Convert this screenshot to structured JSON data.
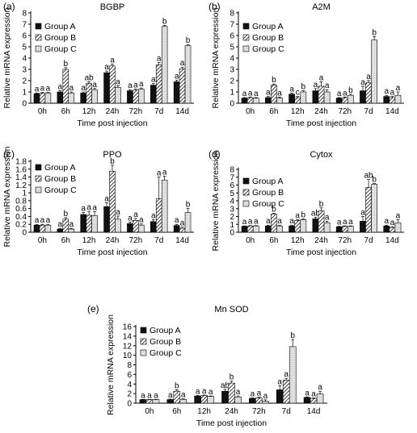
{
  "colors": {
    "group_a": "#111111",
    "group_b": "#ffffff",
    "group_c": "#e9e9e9",
    "axis": "#000000"
  },
  "legend": [
    "Group A",
    "Group B",
    "Group C"
  ],
  "chart_data": [
    {
      "panel": "(a)",
      "title": "BGBP",
      "type": "bar",
      "ylabel": "Relative mRNA expression",
      "xlabel": "Time post injection",
      "ylim": [
        0,
        8
      ],
      "yticks": [
        0,
        1,
        2,
        3,
        4,
        5,
        6,
        7,
        8
      ],
      "categories": [
        "0h",
        "6h",
        "12h",
        "24h",
        "72h",
        "7d",
        "14d"
      ],
      "series": [
        {
          "name": "Group A",
          "values": [
            0.85,
            1.0,
            0.9,
            2.7,
            1.1,
            1.6,
            1.9
          ],
          "errors": [
            0.05,
            0.1,
            0.1,
            0.15,
            0.1,
            0.15,
            0.15
          ],
          "letters": [
            "a",
            "a",
            "a",
            "a",
            "a",
            "a",
            "a"
          ]
        },
        {
          "name": "Group B",
          "values": [
            0.9,
            3.0,
            1.75,
            3.3,
            1.15,
            3.4,
            3.05
          ],
          "errors": [
            0.05,
            0.15,
            0.15,
            0.15,
            0.1,
            0.2,
            0.15
          ],
          "letters": [
            "a",
            "b",
            "ab",
            "a",
            "a",
            "a",
            "a"
          ]
        },
        {
          "name": "Group C",
          "values": [
            0.9,
            0.9,
            1.2,
            1.4,
            1.25,
            6.8,
            5.1
          ],
          "errors": [
            0.05,
            0.1,
            0.1,
            0.15,
            0.1,
            0.1,
            0.1
          ],
          "letters": [
            "a",
            "a",
            "a",
            "a",
            "a",
            "b",
            "b"
          ]
        }
      ]
    },
    {
      "panel": "(b)",
      "title": "A2M",
      "type": "bar",
      "ylabel": "Relative mRNA expression",
      "xlabel": "Time post injection",
      "ylim": [
        0,
        8
      ],
      "yticks": [
        0,
        1,
        2,
        3,
        4,
        5,
        6,
        7,
        8
      ],
      "categories": [
        "0h",
        "6h",
        "12h",
        "24h",
        "72h",
        "7d",
        "14d"
      ],
      "series": [
        {
          "name": "Group A",
          "values": [
            0.45,
            0.5,
            0.8,
            1.1,
            0.45,
            1.1,
            0.6
          ],
          "errors": [
            0.05,
            0.1,
            0.1,
            0.2,
            0.05,
            0.4,
            0.1
          ],
          "letters": [
            "a",
            "a",
            "a",
            "a",
            "a",
            "a",
            "a"
          ]
        },
        {
          "name": "Group B",
          "values": [
            0.5,
            1.6,
            0.5,
            1.5,
            0.5,
            1.8,
            0.5
          ],
          "errors": [
            0.05,
            0.1,
            0.1,
            0.4,
            0.05,
            0.2,
            0.1
          ],
          "letters": [
            "a",
            "b",
            "c",
            "a",
            "a",
            "a",
            "a"
          ]
        },
        {
          "name": "Group C",
          "values": [
            0.45,
            0.45,
            1.0,
            1.0,
            0.7,
            5.6,
            0.7
          ],
          "errors": [
            0.05,
            0.1,
            0.1,
            0.2,
            0.1,
            0.3,
            0.3
          ],
          "letters": [
            "a",
            "a",
            "b",
            "a",
            "b",
            "b",
            "a"
          ]
        }
      ]
    },
    {
      "panel": "(c)",
      "title": "PPO",
      "type": "bar",
      "ylabel": "Relative mRNA expression",
      "xlabel": "Time post injection",
      "ylim": [
        0,
        1.8
      ],
      "yticks": [
        0,
        0.2,
        0.4,
        0.6,
        0.8,
        1,
        1.2,
        1.4,
        1.6,
        1.8
      ],
      "categories": [
        "0h",
        "6h",
        "12h",
        "24h",
        "72h",
        "7d",
        "14d"
      ],
      "series": [
        {
          "name": "Group A",
          "values": [
            0.18,
            0.08,
            0.45,
            0.65,
            0.22,
            0.27,
            0.17
          ],
          "errors": [
            0.02,
            0.02,
            0.05,
            0.1,
            0.04,
            0.05,
            0.03
          ],
          "letters": [
            "a",
            "a",
            "a",
            "a",
            "a",
            "a",
            "a"
          ]
        },
        {
          "name": "Group B",
          "values": [
            0.18,
            0.33,
            0.43,
            1.55,
            0.3,
            0.85,
            0.1
          ],
          "errors": [
            0.02,
            0.04,
            0.1,
            0.15,
            0.05,
            0.55,
            0.03
          ],
          "letters": [
            "a",
            "b",
            "a",
            "b",
            "a",
            "a",
            "a"
          ]
        },
        {
          "name": "Group C",
          "values": [
            0.18,
            0.08,
            0.42,
            0.33,
            0.18,
            1.32,
            0.5
          ],
          "errors": [
            0.02,
            0.02,
            0.1,
            0.08,
            0.03,
            0.1,
            0.1
          ],
          "letters": [
            "a",
            "a",
            "a",
            "a",
            "a",
            "a",
            "b"
          ]
        }
      ]
    },
    {
      "panel": "(d)",
      "title": "Cytox",
      "type": "bar",
      "ylabel": "Relative mRNA expression",
      "xlabel": "Time post injection",
      "ylim": [
        0,
        8
      ],
      "yticks": [
        0,
        1,
        2,
        3,
        4,
        5,
        6,
        7,
        8
      ],
      "categories": [
        "0h",
        "6h",
        "12h",
        "24h",
        "72h",
        "7d",
        "14d"
      ],
      "series": [
        {
          "name": "Group A",
          "values": [
            0.75,
            0.8,
            0.8,
            1.7,
            0.7,
            1.4,
            0.8
          ],
          "errors": [
            0.05,
            0.1,
            0.1,
            0.2,
            0.05,
            0.6,
            0.1
          ],
          "letters": [
            "a",
            "a",
            "a",
            "ab",
            "a",
            "a",
            "a"
          ]
        },
        {
          "name": "Group B",
          "values": [
            0.8,
            2.3,
            1.5,
            2.7,
            0.75,
            5.7,
            0.6
          ],
          "errors": [
            0.05,
            0.1,
            0.1,
            0.4,
            0.05,
            1.0,
            0.1
          ],
          "letters": [
            "a",
            "b",
            "a",
            "b",
            "a",
            "ab",
            "a"
          ]
        },
        {
          "name": "Group C",
          "values": [
            0.8,
            0.8,
            1.6,
            1.2,
            0.75,
            6.1,
            1.2
          ],
          "errors": [
            0.05,
            0.1,
            0.1,
            0.2,
            0.05,
            0.1,
            0.4
          ],
          "letters": [
            "a",
            "a",
            "b",
            "a",
            "a",
            "b",
            "a"
          ]
        }
      ]
    },
    {
      "panel": "(e)",
      "title": "Mn SOD",
      "type": "bar",
      "ylabel": "Relative mRNA expression",
      "xlabel": "Time post injection",
      "ylim": [
        0,
        16
      ],
      "yticks": [
        0,
        2,
        4,
        6,
        8,
        10,
        12,
        14,
        16
      ],
      "categories": [
        "0h",
        "6h",
        "12h",
        "24h",
        "72h",
        "7d",
        "14d"
      ],
      "series": [
        {
          "name": "Group A",
          "values": [
            0.75,
            0.75,
            1.5,
            2.5,
            1.0,
            2.8,
            1.2
          ],
          "errors": [
            0.05,
            0.1,
            0.1,
            0.4,
            0.1,
            0.8,
            0.1
          ],
          "letters": [
            "a",
            "a",
            "a",
            "ab",
            "a",
            "a",
            "a"
          ]
        },
        {
          "name": "Group B",
          "values": [
            0.75,
            2.5,
            1.6,
            4.2,
            1.1,
            4.8,
            1.0
          ],
          "errors": [
            0.05,
            0.3,
            0.1,
            0.4,
            0.2,
            0.4,
            0.1
          ],
          "letters": [
            "a",
            "b",
            "a",
            "b",
            "a",
            "a",
            "a"
          ]
        },
        {
          "name": "Group C",
          "values": [
            0.75,
            0.8,
            1.4,
            1.3,
            0.4,
            11.8,
            1.9
          ],
          "errors": [
            0.05,
            0.1,
            0.1,
            0.2,
            0.3,
            1.5,
            0.6
          ],
          "letters": [
            "a",
            "a",
            "a",
            "a",
            "a",
            "b",
            "a"
          ]
        }
      ]
    }
  ]
}
